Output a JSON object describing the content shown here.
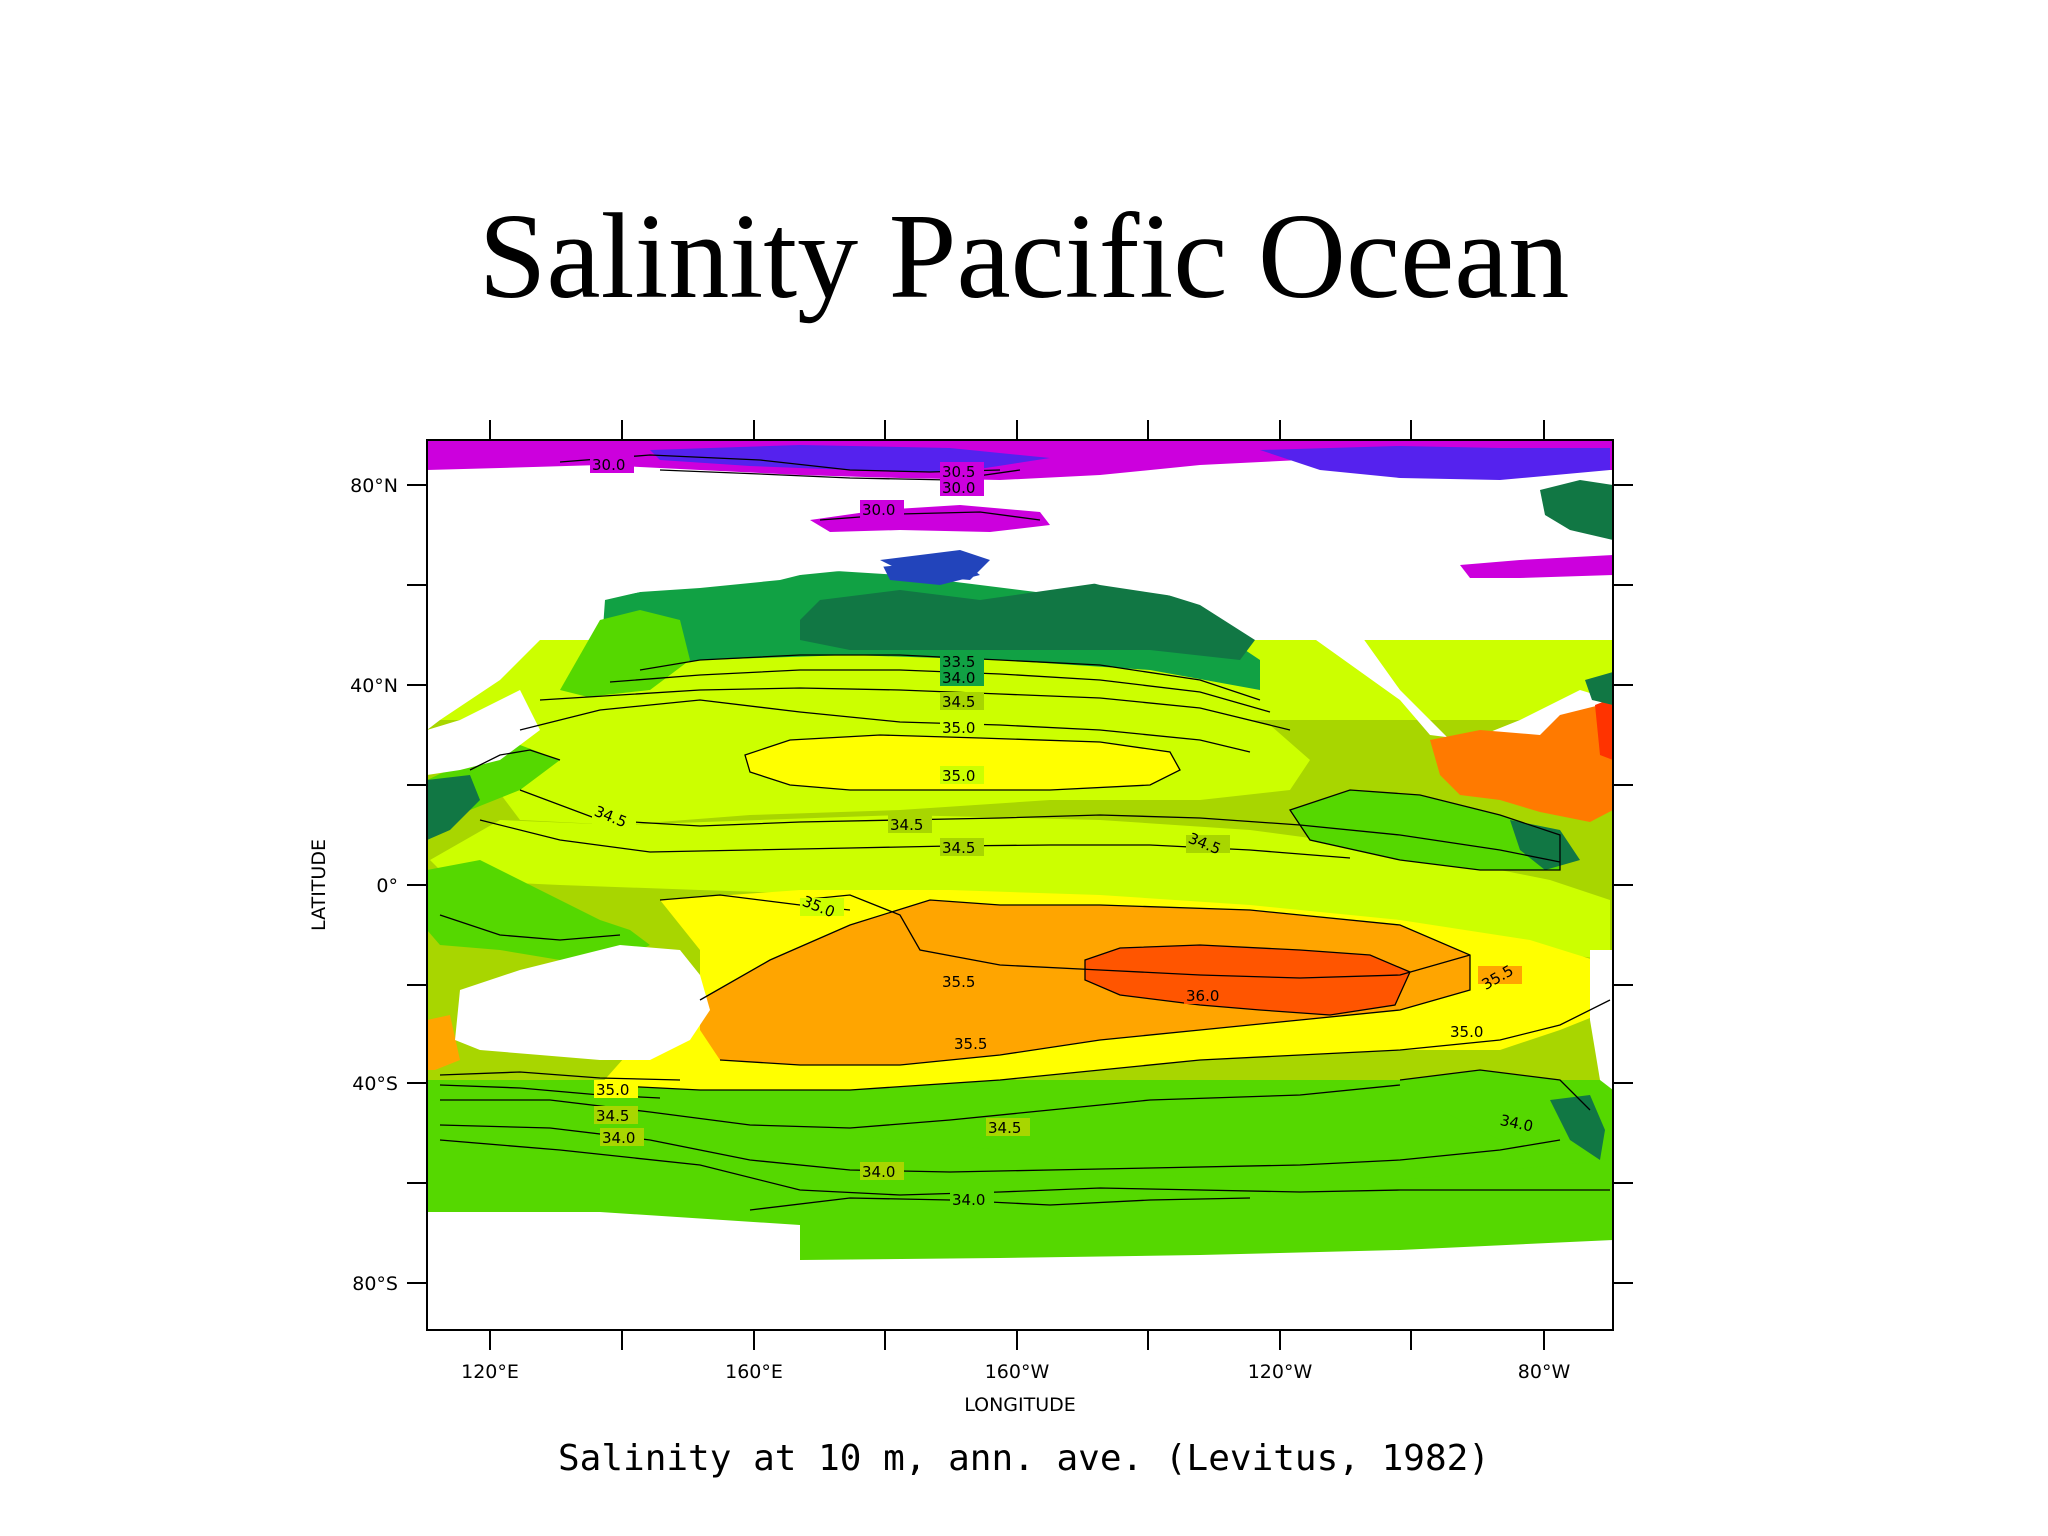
{
  "title": "Salinity Pacific Ocean",
  "caption": "Salinity at 10 m, ann. ave. (Levitus, 1982)",
  "axes": {
    "x_label": "LONGITUDE",
    "y_label": "LATITUDE",
    "x_ticks": [
      "120°E",
      "160°E",
      "160°W",
      "120°W",
      "80°W"
    ],
    "y_ticks": [
      "80°N",
      "40°N",
      "0°",
      "40°S",
      "80°S"
    ]
  },
  "contour_labels": [
    "30.0",
    "30.5",
    "30.0",
    "30.0",
    "33.5",
    "34.0",
    "34.5",
    "35.0",
    "35.0",
    "34.5",
    "34.5",
    "34.5",
    "34.5",
    "35.0",
    "35.5",
    "36.0",
    "35.5",
    "35.0",
    "35.5",
    "35.0",
    "34.5",
    "34.0",
    "34.5",
    "34.0",
    "34.0",
    "34.0"
  ],
  "colors": {
    "lt_30": "#cc00dd",
    "30_31": "#5522ee",
    "31_32": "#2244bb",
    "32_33": "#117744",
    "33_34": "#11a144",
    "34_345": "#55d800",
    "345_35": "#a8d600",
    "35_355": "#ccff00",
    "355_36": "#ffff00",
    "36_365": "#ffa500",
    "gt_365": "#ff5500",
    "land": "#ffffff"
  }
}
